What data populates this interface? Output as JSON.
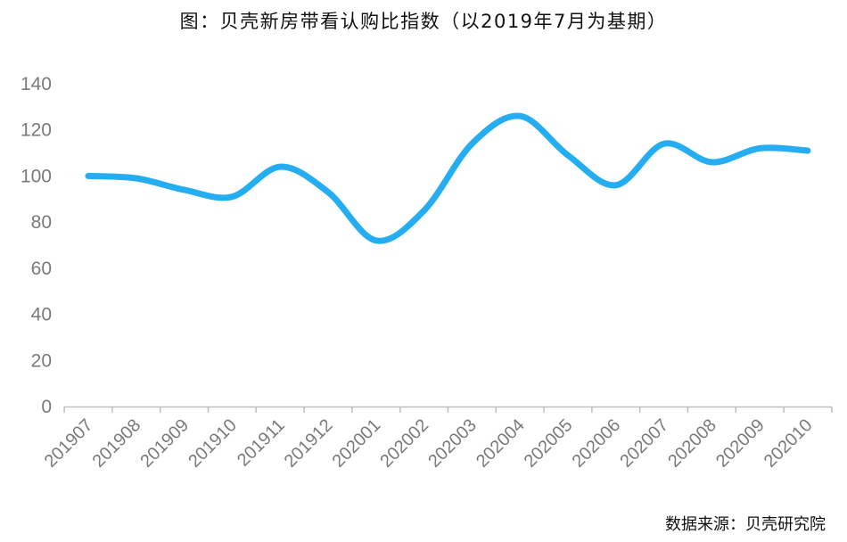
{
  "title": "图：贝壳新房带看认购比指数（以2019年7月为基期）",
  "source": "数据来源：贝壳研究院",
  "chart_data": {
    "type": "line",
    "title": "图：贝壳新房带看认购比指数（以2019年7月为基期）",
    "xlabel": "",
    "ylabel": "",
    "categories": [
      "201907",
      "201908",
      "201909",
      "201910",
      "201911",
      "201912",
      "202001",
      "202002",
      "202003",
      "202004",
      "202005",
      "202006",
      "202007",
      "202008",
      "202009",
      "202010"
    ],
    "series": [
      {
        "values": [
          100,
          99,
          94,
          91,
          104,
          93,
          72,
          85,
          114,
          126,
          109,
          96,
          114,
          106,
          112,
          111
        ]
      }
    ],
    "ylim": [
      0,
      140
    ],
    "yticks": [
      0,
      20,
      40,
      60,
      80,
      100,
      120,
      140
    ],
    "grid": false,
    "legend": "none",
    "smooth": true,
    "line_color": "#25adf2",
    "axis_color": "#bfbfbf",
    "tick_color": "#7a7a7a"
  }
}
